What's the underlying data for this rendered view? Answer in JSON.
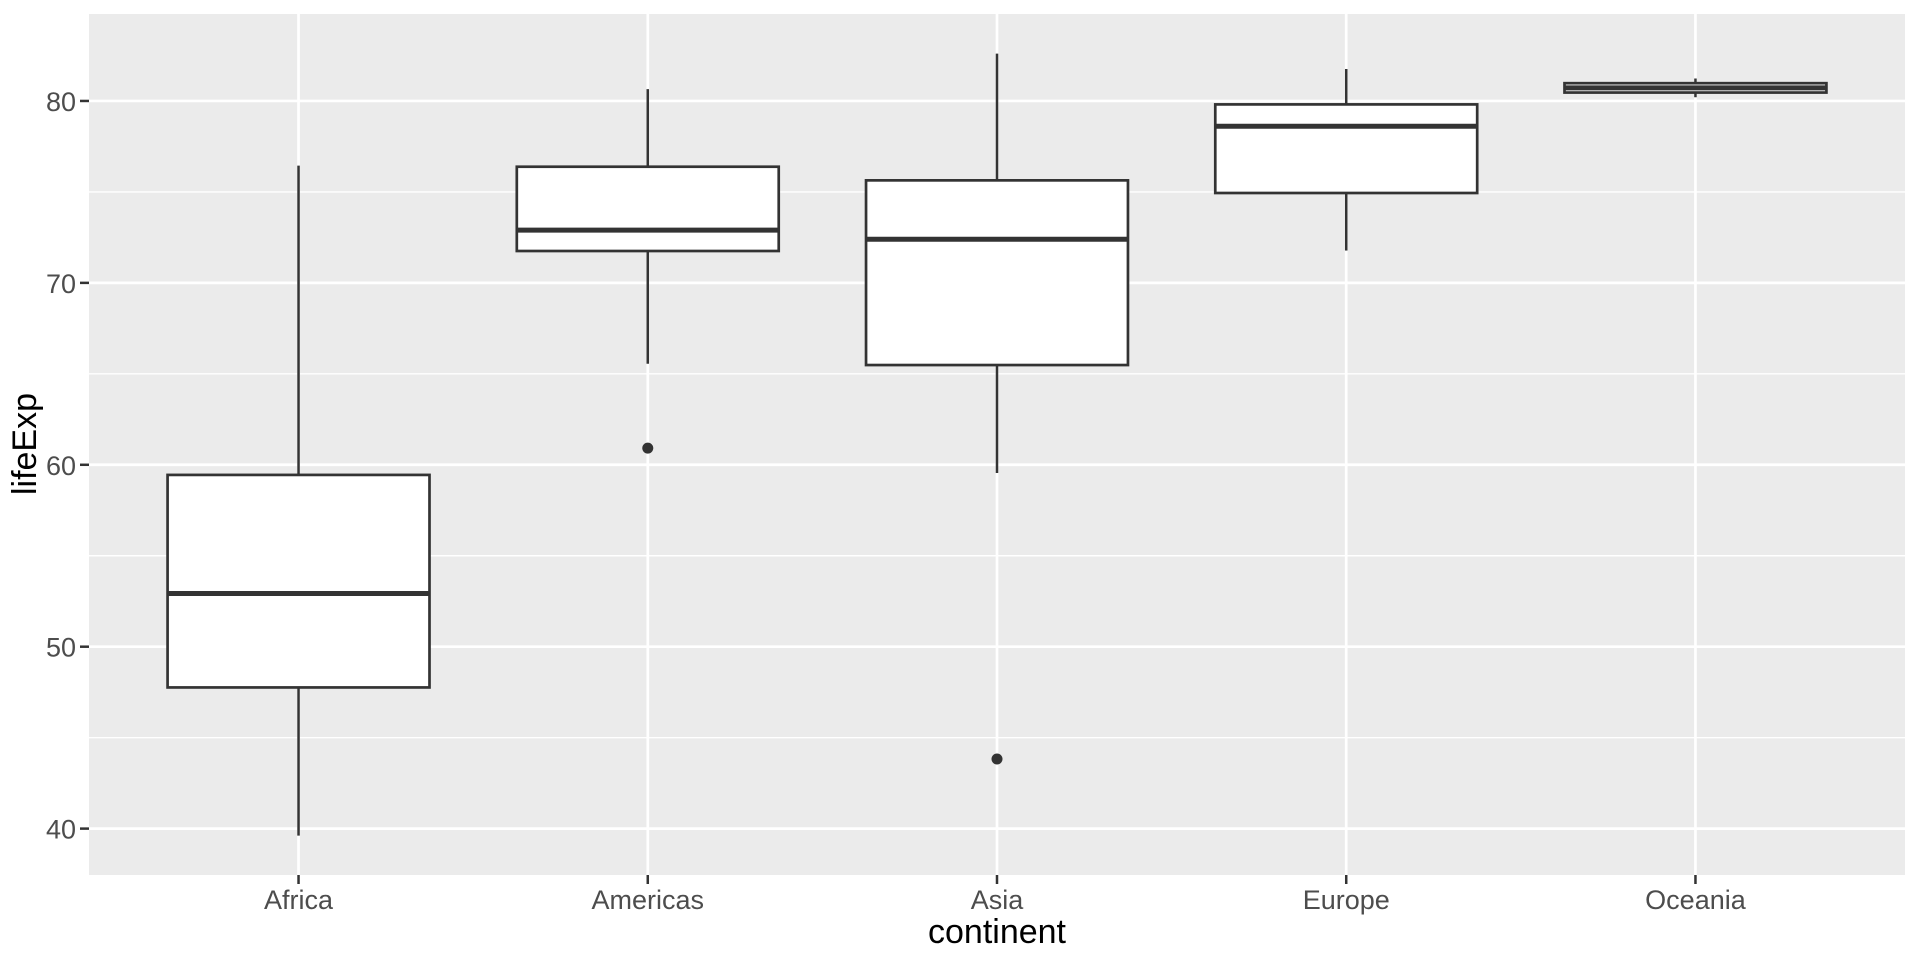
{
  "chart_data": {
    "type": "boxplot",
    "xlabel": "continent",
    "ylabel": "lifeExp",
    "categories": [
      "Africa",
      "Americas",
      "Asia",
      "Europe",
      "Oceania"
    ],
    "y_major_ticks": [
      40,
      50,
      60,
      70,
      80
    ],
    "y_minor_ticks": [
      45,
      55,
      65,
      75
    ],
    "ylim": [
      37.45,
      84.78
    ],
    "grid": "white major and minor horizontal gridlines, white vertical gridline at each category, shown on grey panel",
    "legend": "none",
    "boxes": [
      {
        "category": "Africa",
        "whisker_low": 39.613,
        "q1": 47.76,
        "median": 52.927,
        "q3": 59.443,
        "whisker_high": 76.442,
        "outliers": []
      },
      {
        "category": "Americas",
        "whisker_low": 65.554,
        "q1": 71.752,
        "median": 72.899,
        "q3": 76.384,
        "whisker_high": 80.653,
        "outliers": [
          60.916
        ]
      },
      {
        "category": "Asia",
        "whisker_low": 59.545,
        "q1": 65.483,
        "median": 72.396,
        "q3": 75.635,
        "whisker_high": 82.603,
        "outliers": [
          43.828
        ]
      },
      {
        "category": "Europe",
        "whisker_low": 71.777,
        "q1": 74.94,
        "median": 78.608,
        "q3": 79.81,
        "whisker_high": 81.757,
        "outliers": []
      },
      {
        "category": "Oceania",
        "whisker_low": 80.204,
        "q1": 80.462,
        "median": 80.719,
        "q3": 80.977,
        "whisker_high": 81.235,
        "outliers": []
      }
    ],
    "colors": {
      "panel_background": "#ebebeb",
      "gridline": "#ffffff",
      "box_stroke": "#333333",
      "box_fill": "#ffffff",
      "outlier_fill": "#333333",
      "tick_mark": "#333333",
      "tick_label": "#4d4d4d",
      "axis_title": "#000000",
      "page_background": "#ffffff"
    }
  }
}
